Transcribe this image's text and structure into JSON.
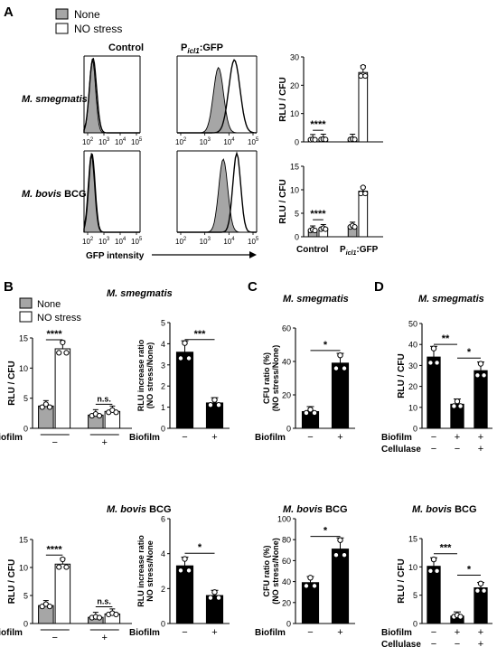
{
  "panels": {
    "A": "A",
    "B": "B",
    "C": "C",
    "D": "D"
  },
  "legend": {
    "none": "None",
    "stress": "NO stress"
  },
  "colors": {
    "none": "#a6a6a6",
    "stress": "#ffffff",
    "black": "#000000"
  },
  "panelA": {
    "col_control": "Control",
    "col_picl_main": "P",
    "col_picl_sub": "icl1",
    "col_picl_tail": ":GFP",
    "row_smeg": "M. smegmatis",
    "row_bovis_italic": "M. bovis",
    "row_bovis_tail": " BCG",
    "ticks": [
      "10",
      "10",
      "10",
      "10"
    ],
    "tick_exps": [
      "2",
      "3",
      "4",
      "5"
    ],
    "xlabel": "GFP intensity",
    "bar_ylabel": "RLU / CFU",
    "bar_xlabel_control": "Control",
    "bar_xlabel_picl": "P",
    "bar_xlabel_picl_sub": "icl1",
    "bar_xlabel_picl_tail": ":GFP",
    "sig": "****"
  },
  "chart_data": [
    {
      "id": "A-top",
      "type": "bar",
      "title": "",
      "ylabel": "RLU / CFU",
      "ylim": [
        0,
        30
      ],
      "yticks": [
        0,
        10,
        20,
        30
      ],
      "categories": [
        "Control",
        "Picl1:GFP"
      ],
      "series": [
        {
          "name": "None",
          "values": [
            0.8,
            0.9
          ]
        },
        {
          "name": "NO stress",
          "values": [
            0.9,
            24.5
          ]
        }
      ],
      "annotations": [
        "****"
      ]
    },
    {
      "id": "A-bottom",
      "type": "bar",
      "title": "",
      "ylabel": "RLU / CFU",
      "ylim": [
        0,
        15
      ],
      "yticks": [
        0,
        5,
        10,
        15
      ],
      "categories": [
        "Control",
        "Picl1:GFP"
      ],
      "series": [
        {
          "name": "None",
          "values": [
            1.4,
            2.2
          ]
        },
        {
          "name": "NO stress",
          "values": [
            1.7,
            9.7
          ]
        }
      ],
      "annotations": [
        "****"
      ]
    },
    {
      "id": "B-smeg-1",
      "type": "bar",
      "title": "M. smegmatis",
      "ylabel": "RLU / CFU",
      "ylim": [
        0,
        15
      ],
      "yticks": [
        0,
        5,
        10,
        15
      ],
      "categories": [
        "−",
        "+"
      ],
      "series": [
        {
          "name": "None",
          "values": [
            3.7,
            2.2
          ]
        },
        {
          "name": "NO stress",
          "values": [
            13.2,
            2.8
          ]
        }
      ],
      "annotations": [
        "****",
        "n.s."
      ],
      "xlabel": "Biofilm"
    },
    {
      "id": "B-smeg-2",
      "type": "bar",
      "title": "",
      "ylabel": "RLU increase ratio (NO stress/None)",
      "ylim": [
        0,
        5
      ],
      "yticks": [
        0,
        1,
        2,
        3,
        4,
        5
      ],
      "categories": [
        "−",
        "+"
      ],
      "values": [
        3.6,
        1.2
      ],
      "annotations": [
        "***"
      ],
      "xlabel": "Biofilm"
    },
    {
      "id": "C-smeg",
      "type": "bar",
      "title": "M. smegmatis",
      "ylabel": "CFU ratio (%) (NO stress/None)",
      "ylim": [
        0,
        60
      ],
      "yticks": [
        0,
        20,
        40,
        60
      ],
      "categories": [
        "−",
        "+"
      ],
      "values": [
        10,
        39
      ],
      "annotations": [
        "*"
      ],
      "xlabel": "Biofilm"
    },
    {
      "id": "D-smeg",
      "type": "bar",
      "title": "M. smegmatis",
      "ylabel": "RLU / CFU",
      "ylim": [
        0,
        50
      ],
      "yticks": [
        0,
        10,
        20,
        30,
        40,
        50
      ],
      "categories": [
        "− −",
        "+ −",
        "+ +"
      ],
      "values": [
        34,
        11.5,
        27.5
      ],
      "annotations": [
        "**",
        "*"
      ],
      "xlabel": "Biofilm / Cellulase"
    },
    {
      "id": "B-bovis-1",
      "type": "bar",
      "title": "M. bovis BCG",
      "ylabel": "RLU / CFU",
      "ylim": [
        0,
        15
      ],
      "yticks": [
        0,
        5,
        10,
        15
      ],
      "categories": [
        "−",
        "+"
      ],
      "series": [
        {
          "name": "None",
          "values": [
            3.2,
            1.1
          ]
        },
        {
          "name": "NO stress",
          "values": [
            10.6,
            1.7
          ]
        }
      ],
      "annotations": [
        "****",
        "n.s."
      ],
      "xlabel": "Biofilm"
    },
    {
      "id": "B-bovis-2",
      "type": "bar",
      "title": "",
      "ylabel": "RLU increase ratio NO stress/None",
      "ylim": [
        0,
        6
      ],
      "yticks": [
        0,
        2,
        4,
        6
      ],
      "categories": [
        "−",
        "+"
      ],
      "values": [
        3.3,
        1.6
      ],
      "annotations": [
        "*"
      ],
      "xlabel": "Biofilm"
    },
    {
      "id": "C-bovis",
      "type": "bar",
      "title": "M. bovis BCG",
      "ylabel": "CFU ratio (%) (NO stress/None)",
      "ylim": [
        0,
        100
      ],
      "yticks": [
        0,
        20,
        40,
        60,
        80,
        100
      ],
      "categories": [
        "−",
        "+"
      ],
      "values": [
        39,
        71
      ],
      "annotations": [
        "*"
      ],
      "xlabel": "Biofilm"
    },
    {
      "id": "D-bovis",
      "type": "bar",
      "title": "M. bovis BCG",
      "ylabel": "RLU / CFU",
      "ylim": [
        0,
        15
      ],
      "yticks": [
        0,
        5,
        10,
        15
      ],
      "categories": [
        "− −",
        "+ −",
        "+ +"
      ],
      "values": [
        10.1,
        1.3,
        6.3
      ],
      "annotations": [
        "***",
        "*"
      ],
      "xlabel": "Biofilm / Cellulase"
    }
  ],
  "labels": {
    "smeg": "M. smegmatis",
    "bovis_italic": "M. bovis",
    "bovis_tail": " BCG",
    "biofilm": "Biofilm",
    "cellulase": "Cellulase",
    "minus": "−",
    "plus": "+",
    "rlu_cfu": "RLU / CFU",
    "ratio_smeg_1": "RLU increase ratio",
    "ratio_smeg_2": "(NO stress/None)",
    "ratio_bovis_1": "RLU increase ratio",
    "ratio_bovis_2": "NO stress/None",
    "cfu_ratio_1": "CFU ratio (%)",
    "cfu_ratio_2": "(NO stress/None)",
    "ns": "n.s."
  }
}
